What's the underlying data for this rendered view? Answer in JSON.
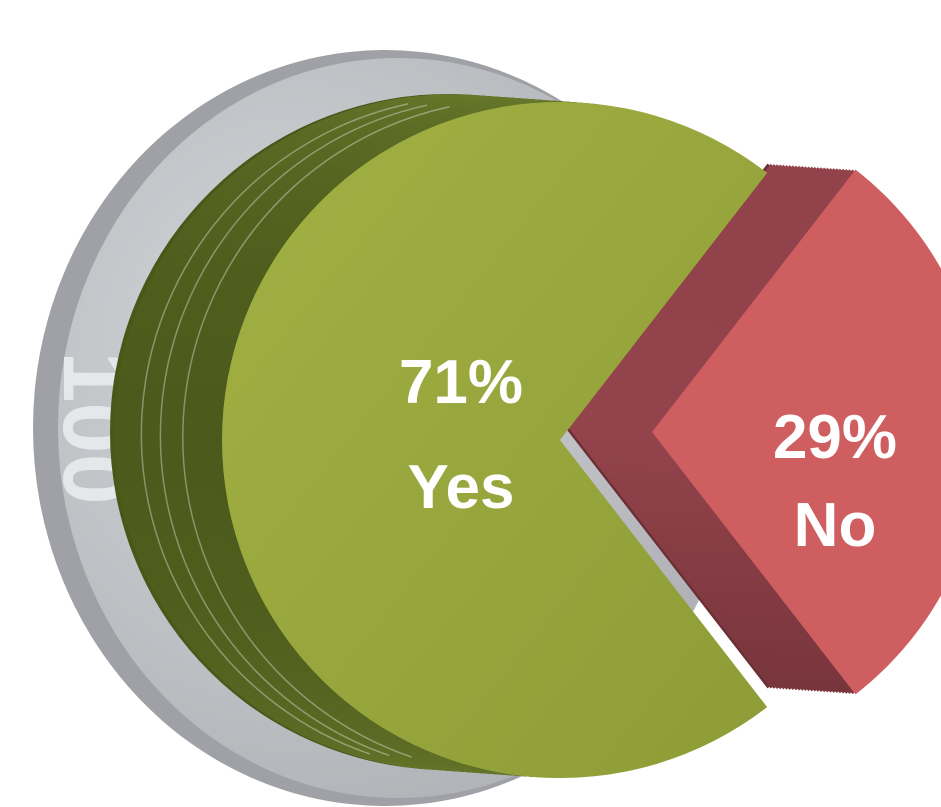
{
  "chart_data": {
    "type": "pie",
    "title": "",
    "background_badge": "100",
    "slices": [
      {
        "label": "Yes",
        "value": 71,
        "display": "71%",
        "color": "#95a33b",
        "side_color": "#5d6d23"
      },
      {
        "label": "No",
        "value": 29,
        "display": "29%",
        "color": "#cf5e60",
        "side_color": "#7e3a40"
      }
    ],
    "style": "3d-exploded",
    "legend": "none"
  }
}
